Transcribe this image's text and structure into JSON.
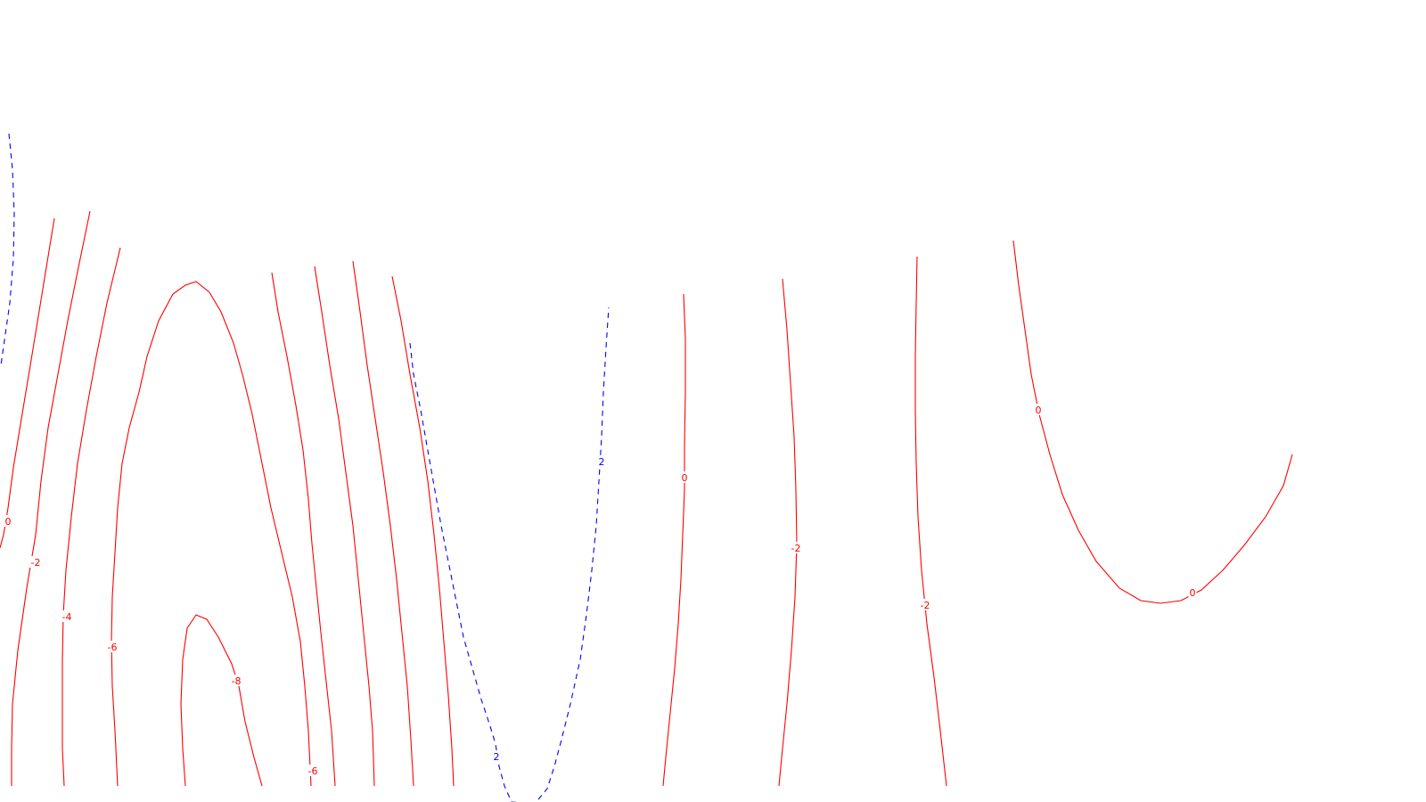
{
  "chart_data": {
    "type": "contour",
    "title": "",
    "xlabel": "",
    "ylabel": "",
    "grid": false,
    "legend": "none",
    "colors": {
      "negative_and_zero": "#ff0000",
      "positive": "#0000ff"
    },
    "styles": {
      "negative_and_zero": "solid",
      "positive": "dashed"
    },
    "levels": [
      -8,
      -6,
      -4,
      -2,
      0,
      2
    ],
    "contours": [
      {
        "id": "blue-left",
        "level": 2,
        "labels": []
      },
      {
        "id": "zero-left",
        "level": 0,
        "labels": [
          "0"
        ]
      },
      {
        "id": "minus2-left",
        "level": -2,
        "labels": [
          "-2"
        ]
      },
      {
        "id": "minus4-left",
        "level": -4,
        "labels": [
          "-4"
        ]
      },
      {
        "id": "minus6-left",
        "level": -6,
        "labels": [
          "-6"
        ]
      },
      {
        "id": "minus8-top-loop",
        "level": -8,
        "labels": []
      },
      {
        "id": "minus8-bottom-loop",
        "level": -8,
        "labels": [
          "-8"
        ]
      },
      {
        "id": "mid-a",
        "level": -6,
        "labels": []
      },
      {
        "id": "mid-b",
        "level": -6,
        "labels": [
          "-6"
        ]
      },
      {
        "id": "mid-c",
        "level": -4,
        "labels": []
      },
      {
        "id": "mid-d",
        "level": -2,
        "labels": []
      },
      {
        "id": "blue-center",
        "level": 2,
        "labels": [
          "2",
          "2"
        ]
      },
      {
        "id": "zero-center",
        "level": 0,
        "labels": [
          "0"
        ]
      },
      {
        "id": "minus2-center",
        "level": -2,
        "labels": [
          "-2"
        ]
      },
      {
        "id": "minus2-right",
        "level": -2,
        "labels": [
          "-2"
        ]
      },
      {
        "id": "zero-right",
        "level": 0,
        "labels": [
          "0",
          "0"
        ]
      }
    ]
  }
}
